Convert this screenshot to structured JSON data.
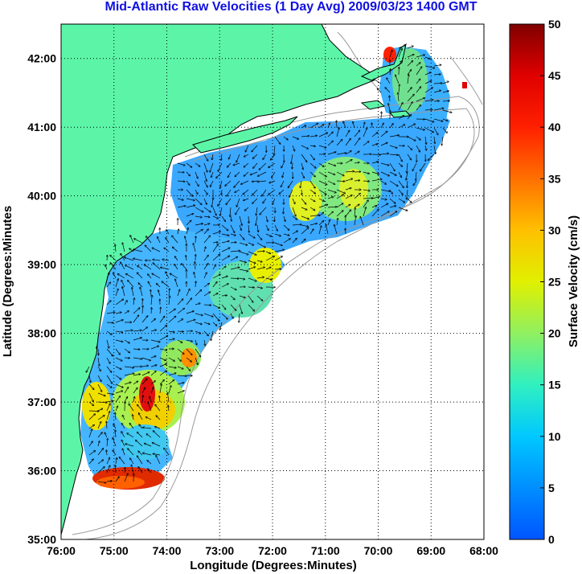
{
  "title": "Mid-Atlantic Raw Velocities (1 Day Avg) 2009/03/23 1400 GMT",
  "axes": {
    "xlabel": "Longitude (Degrees:Minutes)",
    "ylabel": "Latitude (Degrees:Minutes",
    "xticks": [
      "76:00",
      "75:00",
      "74:00",
      "73:00",
      "72:00",
      "71:00",
      "70:00",
      "69:00",
      "68:00"
    ],
    "yticks": [
      "42:00",
      "41:00",
      "40:00",
      "39:00",
      "38:00",
      "37:00",
      "36:00",
      "35:00"
    ],
    "lon_range": [
      -76,
      -68
    ],
    "lat_range": [
      35,
      42.5
    ],
    "grid": "dotted"
  },
  "colorbar": {
    "label": "Surface Velocity (cm/s)",
    "ticks": [
      "50",
      "45",
      "40",
      "35",
      "30",
      "25",
      "20",
      "15",
      "10",
      "5",
      "0"
    ],
    "range": [
      0,
      50
    ]
  },
  "colors": {
    "land": "#5cf5a8",
    "title": "#1010e0",
    "water_bg": "#ffffff",
    "coast_line": "#000000",
    "bathymetry": "#999999"
  }
}
